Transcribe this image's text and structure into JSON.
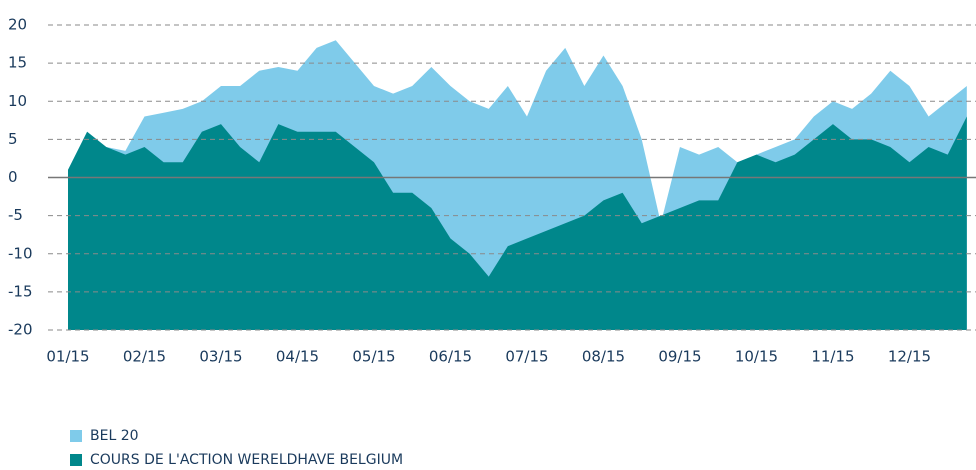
{
  "chart_data": {
    "type": "area",
    "x": [
      0,
      0.25,
      0.5,
      0.75,
      1,
      1.25,
      1.5,
      1.75,
      2,
      2.25,
      2.5,
      2.75,
      3,
      3.25,
      3.5,
      3.75,
      4,
      4.25,
      4.5,
      4.75,
      5,
      5.25,
      5.5,
      5.75,
      6,
      6.25,
      6.5,
      6.75,
      7,
      7.25,
      7.5,
      7.75,
      8,
      8.25,
      8.5,
      8.75,
      9,
      9.25,
      9.5,
      9.75,
      10,
      10.25,
      10.5,
      10.75,
      11,
      11.25,
      11.5,
      11.75
    ],
    "series": [
      {
        "name": "BEL 20",
        "color": "#7fcbea",
        "values": [
          1,
          6,
          4,
          3.5,
          8,
          8.5,
          9,
          10,
          12,
          12,
          14,
          14.5,
          14,
          17,
          18,
          15,
          12,
          11,
          12,
          14.5,
          12,
          10,
          9,
          12,
          8,
          14,
          17,
          12,
          16,
          12,
          5,
          -6,
          4,
          3,
          4,
          2,
          3,
          4,
          5,
          8,
          10,
          9,
          11,
          14,
          12,
          8,
          10,
          12
        ]
      },
      {
        "name": "COURS DE L'ACTION WERELDHAVE BELGIUM",
        "color": "#00878b",
        "values": [
          1,
          6,
          4,
          3,
          4,
          2,
          2,
          6,
          7,
          4,
          2,
          7,
          6,
          6,
          6,
          4,
          2,
          -2,
          -2,
          -4,
          -8,
          -10,
          -13,
          -9,
          -8,
          -7,
          -6,
          -5,
          -3,
          -2,
          -6,
          -5,
          -4,
          -3,
          -3,
          2,
          3,
          2,
          3,
          5,
          7,
          5,
          5,
          4,
          2,
          4,
          3,
          8
        ]
      }
    ],
    "xlim": [
      0,
      11.87
    ],
    "xticks": [
      {
        "value": 0,
        "label": "01/15"
      },
      {
        "value": 1,
        "label": "02/15"
      },
      {
        "value": 2,
        "label": "03/15"
      },
      {
        "value": 3,
        "label": "04/15"
      },
      {
        "value": 4,
        "label": "05/15"
      },
      {
        "value": 5,
        "label": "06/15"
      },
      {
        "value": 6,
        "label": "07/15"
      },
      {
        "value": 7,
        "label": "08/15"
      },
      {
        "value": 8,
        "label": "09/15"
      },
      {
        "value": 9,
        "label": "10/15"
      },
      {
        "value": 10,
        "label": "11/15"
      },
      {
        "value": 11,
        "label": "12/15"
      }
    ],
    "ylim": [
      -20,
      20
    ],
    "yticks": [
      -20,
      -15,
      -10,
      -5,
      0,
      5,
      10,
      15,
      20
    ],
    "grid": true
  }
}
